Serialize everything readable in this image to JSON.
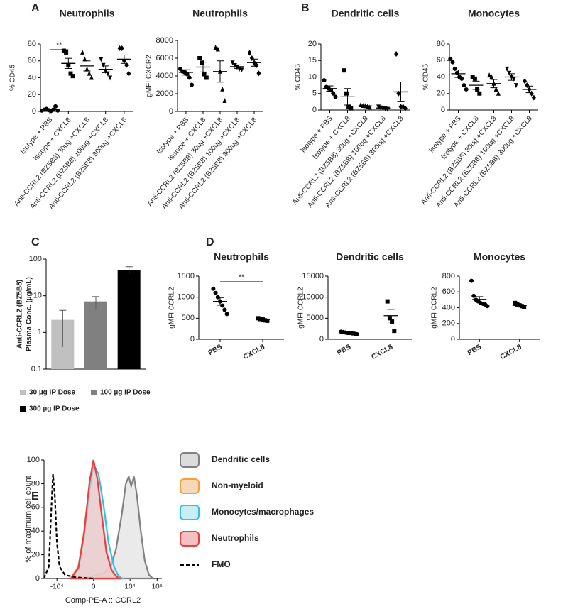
{
  "chart_data": [
    {
      "type": "dot",
      "panel": "A",
      "title": "Neutrophils",
      "ylabel": "% CD45",
      "categories": [
        "Isotype + PBS",
        "Isotype + CXCL8",
        "Anti-CCRL2 (BZ5B8) 30ug +CXCL8",
        "Anti-CCRL2 (BZ5B8) 100ug +CXCL8",
        "Anti-CCRL2 (BZ5B8) 300ug +CXCL8"
      ],
      "points": [
        [
          1,
          2,
          3,
          1.5,
          0.5,
          2,
          6,
          1
        ],
        [
          72,
          70,
          55,
          45,
          42
        ],
        [
          70,
          62,
          50,
          45,
          40
        ],
        [
          62,
          55,
          48,
          45,
          40
        ],
        [
          75,
          75,
          60,
          55,
          45
        ]
      ],
      "means": [
        2.1,
        57,
        54,
        50,
        62
      ],
      "errors": [
        0.7,
        6,
        6,
        4,
        5
      ],
      "markers": [
        "circle",
        "square",
        "triangle",
        "triangle-down",
        "diamond"
      ],
      "color": "#000000",
      "ylim": [
        0,
        80
      ],
      "yticks": [
        0,
        20,
        40,
        60,
        80
      ],
      "significance": "**"
    },
    {
      "type": "dot",
      "title": "Neutrophils",
      "ylabel": "gMFI CXCR2",
      "categories": [
        "Isotype + PBS",
        "Isotype + CXCL8",
        "Anti-CCRL2 (BZ5B8) 30ug +CXCL8",
        "Anti-CCRL2 (BZ5B8) 100ug +CXCL8",
        "Anti-CCRL2 (BZ5B8) 300ug +CXCL8"
      ],
      "points": [
        [
          4800,
          4500,
          4400,
          4200,
          3800,
          3000
        ],
        [
          6000,
          5500,
          4200,
          3800
        ],
        [
          7200,
          7000,
          4500,
          2500,
          1200
        ],
        [
          5500,
          5200,
          5000,
          4800,
          4700
        ],
        [
          6600,
          6000,
          5500,
          5200,
          4300
        ]
      ],
      "means": [
        4400,
        5000,
        4500,
        5050,
        5500
      ],
      "errors": [
        300,
        550,
        1200,
        200,
        400
      ],
      "markers": [
        "circle",
        "square",
        "triangle",
        "triangle-down",
        "diamond"
      ],
      "color": "#000000",
      "ylim": [
        0,
        8000
      ],
      "yticks": [
        0,
        2000,
        4000,
        6000,
        8000
      ]
    },
    {
      "type": "dot",
      "panel": "B",
      "title": "Dendritic cells",
      "ylabel": "% CD45",
      "categories": [
        "Isotype + PBS",
        "Isotype + CXCL8",
        "Anti-CCRL2 (BZ5B8) 30ug +CXCL8",
        "Anti-CCRL2 (BZ5B8) 100ug +CXCL8",
        "Anti-CCRL2 (BZ5B8) 300ug +CXCL8"
      ],
      "points": [
        [
          9,
          7,
          6.5,
          6,
          5,
          4
        ],
        [
          12,
          5,
          1,
          0.5
        ],
        [
          1.5,
          1.3,
          1.2,
          1,
          0.8
        ],
        [
          1,
          0.7,
          0.5,
          0.4,
          0.3
        ],
        [
          17,
          5,
          1,
          1,
          0.5
        ]
      ],
      "means": [
        6.5,
        4,
        1.2,
        0.6,
        5.5
      ],
      "errors": [
        0.8,
        2.5,
        0.2,
        0.2,
        3
      ],
      "markers": [
        "circle",
        "square",
        "triangle",
        "triangle-down",
        "diamond"
      ],
      "color": "#000000",
      "ylim": [
        0,
        20
      ],
      "yticks": [
        0,
        5,
        10,
        15,
        20
      ]
    },
    {
      "type": "dot",
      "title": "Monocytes",
      "ylabel": "% CD45",
      "categories": [
        "Isotype + PBS",
        "Isotype + CXCL8",
        "Anti-CCRL2 (BZ5B8) 30ug +CXCL8",
        "Anti-CCRL2 (BZ5B8) 100ug +CXCL8",
        "Anti-CCRL2 (BZ5B8) 300ug +CXCL8"
      ],
      "points": [
        [
          62,
          58,
          50,
          45,
          40,
          38,
          30,
          25
        ],
        [
          40,
          38,
          25,
          20
        ],
        [
          42,
          40,
          32,
          25,
          20
        ],
        [
          50,
          45,
          40,
          38,
          30
        ],
        [
          35,
          30,
          25,
          20,
          15
        ]
      ],
      "means": [
        44,
        30,
        32,
        40,
        25
      ],
      "errors": [
        4.5,
        5,
        5,
        4,
        4
      ],
      "markers": [
        "circle",
        "square",
        "triangle",
        "triangle-down",
        "diamond"
      ],
      "color": "#000000",
      "ylim": [
        0,
        80
      ],
      "yticks": [
        0,
        20,
        40,
        60,
        80
      ]
    },
    {
      "type": "bar",
      "panel": "C",
      "ylabel": [
        "Anti-CCRL2 (BZ5B8)",
        "Plasma Conc. (µg/mL)"
      ],
      "categories": [
        "30 µg IP Dose",
        "100 µg IP Dose",
        "300 µg IP Dose"
      ],
      "values": [
        2.2,
        7,
        50
      ],
      "errors": [
        1.8,
        2.5,
        12
      ],
      "colors": [
        "#c0c0c0",
        "#808080",
        "#000000"
      ],
      "log": true,
      "ylim": [
        0.1,
        100
      ],
      "yticks": [
        0.1,
        1,
        10,
        100
      ]
    },
    {
      "type": "dot",
      "panel": "D",
      "title": "Neutrophils",
      "ylabel": "gMFI CCRL2",
      "categories": [
        "PBS",
        "CXCL8"
      ],
      "points": [
        [
          1200,
          1100,
          1000,
          900,
          800,
          700,
          600
        ],
        [
          500,
          480,
          470,
          450,
          440
        ]
      ],
      "means": [
        900,
        470
      ],
      "errors": [
        90,
        15
      ],
      "markers": [
        "circle",
        "square"
      ],
      "color": "#000000",
      "ylim": [
        0,
        1500
      ],
      "yticks": [
        0,
        500,
        1000,
        1500
      ],
      "significance": "**"
    },
    {
      "type": "dot",
      "title": "Dendritic cells",
      "ylabel": "gMFI CCRL2",
      "categories": [
        "PBS",
        "CXCL8"
      ],
      "points": [
        [
          1800,
          1700,
          1600,
          1500,
          1500,
          1400,
          1300,
          1200
        ],
        [
          9000,
          5000,
          4200,
          2000
        ]
      ],
      "means": [
        1500,
        5600
      ],
      "errors": [
        70,
        1500
      ],
      "markers": [
        "circle",
        "square"
      ],
      "color": "#000000",
      "ylim": [
        0,
        15000
      ],
      "yticks": [
        0,
        5000,
        10000,
        15000
      ]
    },
    {
      "type": "dot",
      "title": "Monocytes",
      "ylabel": "gMFI CCRL2",
      "categories": [
        "PBS",
        "CXCL8"
      ],
      "points": [
        [
          740,
          550,
          500,
          480,
          460,
          450,
          440,
          420
        ],
        [
          460,
          440,
          430,
          420,
          410
        ]
      ],
      "means": [
        505,
        430
      ],
      "errors": [
        35,
        12
      ],
      "markers": [
        "circle",
        "square"
      ],
      "color": "#000000",
      "ylim": [
        0,
        800
      ],
      "yticks": [
        0,
        200,
        400,
        600,
        800
      ]
    },
    {
      "type": "density",
      "panel": "E",
      "xlabel": "Comp-PE-A :: CCRL2",
      "ylabel": "% of maximum cell count",
      "xlim": [
        -30000,
        150000
      ],
      "xticks": [
        {
          "value": -10000,
          "label": "-10⁴"
        },
        0,
        {
          "value": 10000,
          "label": "10⁴"
        },
        {
          "value": 100000,
          "label": "10⁵"
        }
      ],
      "ylim": [
        0,
        100
      ],
      "yticks": [
        0,
        20,
        40,
        60,
        80,
        100
      ],
      "series": [
        {
          "name": "Dendritic cells",
          "color": "#808080",
          "fill": "#dcdcdc",
          "x": [
            -2000,
            0,
            1000,
            2000,
            3000,
            5000,
            7000,
            9000,
            11000,
            14000,
            18000,
            25000,
            35000,
            50000,
            70000
          ],
          "values": [
            0,
            2,
            5,
            12,
            25,
            55,
            80,
            86,
            78,
            86,
            70,
            40,
            15,
            3,
            0
          ]
        },
        {
          "name": "Non-myeloid",
          "color": "#f5a040",
          "fill": "#f5d8b8",
          "x": [
            -3000,
            -1500,
            -800,
            -300,
            0,
            300,
            700,
            1200,
            2000,
            3000,
            4000
          ],
          "values": [
            0,
            10,
            40,
            80,
            98,
            85,
            55,
            25,
            8,
            2,
            0
          ]
        },
        {
          "name": "Monocytes/macrophages",
          "color": "#30c0e8",
          "fill": "#c8eef8",
          "x": [
            -3000,
            -1500,
            -800,
            -300,
            0,
            400,
            900,
            1500,
            2500,
            3500,
            5000
          ],
          "values": [
            0,
            8,
            35,
            75,
            96,
            88,
            60,
            30,
            10,
            3,
            0
          ]
        },
        {
          "name": "Neutrophils",
          "color": "#e84040",
          "fill": "#f5c0c0",
          "x": [
            -3000,
            -1500,
            -800,
            -300,
            0,
            300,
            700,
            1200,
            2000,
            3000,
            4000
          ],
          "values": [
            0,
            9,
            38,
            82,
            100,
            84,
            52,
            22,
            7,
            2,
            0
          ]
        },
        {
          "name": "FMO",
          "color": "#000000",
          "dash": true,
          "x": [
            -30000,
            -20000,
            -16000,
            -14000,
            -12000,
            -10000,
            -8000,
            -5000,
            -2000,
            0
          ],
          "values": [
            0,
            10,
            60,
            88,
            70,
            30,
            10,
            3,
            1,
            0
          ]
        }
      ]
    }
  ]
}
